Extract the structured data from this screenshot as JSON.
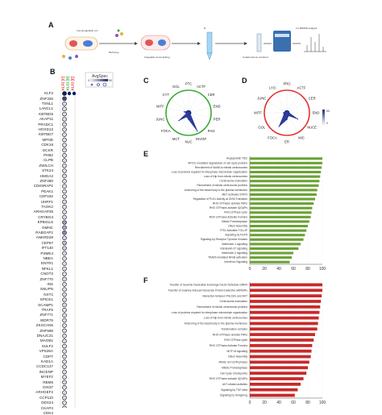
{
  "panels": {
    "a": "A",
    "b": "B",
    "c": "C",
    "d": "D",
    "e": "E",
    "f": "F"
  },
  "workflow": {
    "step1_label": "Immunoglobulin A-1",
    "step2_label": "RUS-free",
    "step3_label": "Cleavable Cross-linking",
    "step4_label": "D",
    "step5_label": "Cobalt column enriched",
    "step6_label": "LC-MS/MS analysis",
    "colors": {
      "bait": "#e25555",
      "prey": "#4a7fd6",
      "tube": "#a5d6f7",
      "ms": "#3a6fb0"
    }
  },
  "dotplot": {
    "column_headers": [
      "KLF2 [C]",
      "KLF2 [D]",
      "KLF2 [E]"
    ],
    "legend_title": "AvgSpec",
    "legend_min": "0",
    "legend_max": "50",
    "genes": [
      "KLF2",
      "ZNF326",
      "TXNL1",
      "LANCL1",
      "KBTBD6",
      "AKAP11",
      "PRADC1",
      "HOXD13",
      "KBTBD7",
      "MPND",
      "CDK16",
      "DCKR",
      "PHB2",
      "CLPB",
      "ZWILCH",
      "STK24",
      "HMGA2",
      "ZNF280",
      "CDK5RAP2",
      "PEAK1",
      "CEP192",
      "UHRF1",
      "TAOK2",
      "ARHGAP35",
      "CRYBG3",
      "EPB41L5",
      "GMNC",
      "RABGAP1",
      "ANKRD28",
      "CEP97",
      "IFT140",
      "PSME4",
      "NBEA",
      "ENTR1",
      "NFKL1",
      "CNOT3",
      "ZNF770",
      "INS",
      "SNUPN",
      "NXT1",
      "SPICE1",
      "SCAMP1",
      "TRAF5",
      "ZNF771",
      "WDR76",
      "ZKSCAN5",
      "ZNF598",
      "DNAJC21",
      "MAOB1",
      "SULF2",
      "VPS26A",
      "CDPT",
      "KAD1A",
      "CCDC137",
      "INCENP",
      "MYEF2",
      "RBM6",
      "DIX37",
      "ARHGEF2",
      "CCP110",
      "DDX24",
      "CKAP4",
      "CDK4"
    ],
    "klf2_values": [
      50,
      40,
      8,
      6,
      3,
      3,
      4,
      3,
      3,
      2,
      2,
      1,
      2,
      2,
      1,
      1,
      2,
      1,
      1,
      1,
      2,
      1,
      1,
      1,
      1,
      22,
      18,
      26,
      9,
      14,
      10,
      3,
      5,
      3,
      2,
      1,
      1,
      1,
      1,
      1,
      1,
      1,
      1,
      1,
      1,
      1,
      1,
      1,
      1,
      1,
      1,
      1,
      1,
      1,
      1,
      1,
      1,
      1,
      1,
      1,
      1,
      1,
      1
    ],
    "low_color": "#ffffff",
    "high_color": "#0d1b6e"
  },
  "radar_c": {
    "labels": [
      "PTC",
      "ACTF",
      "CER",
      "END",
      "PER",
      "RAG",
      "INVOP",
      "NUC",
      "MCT",
      "FOCA",
      "JUNC",
      "MITF",
      "CYT",
      "GOL"
    ],
    "values": [
      0.1,
      0.1,
      0.1,
      0.1,
      0.1,
      0.1,
      0.9,
      0.3,
      0.2,
      0.55,
      0.1,
      0.2,
      0.1,
      0.1
    ],
    "circle_color": "#3aa835",
    "fill_color": "#0a1a8a"
  },
  "radar_d": {
    "labels": [
      "PRO",
      "ACTF",
      "CER",
      "END",
      "NUCE",
      "MIC",
      "ER",
      "FOCA",
      "GOL",
      "MITF",
      "JUNC",
      "LYO"
    ],
    "values": [
      0.1,
      0.1,
      0.1,
      0.1,
      0.55,
      0.15,
      0.3,
      0.7,
      0.15,
      0.15,
      0.1,
      0.1
    ],
    "circle_color": "#e03131",
    "fill_color": "#0a1a8a",
    "legend_min": "0",
    "legend_max": "50"
  },
  "chart_e": {
    "type": "bar",
    "categories": [
      "Angiopoietin TIE2",
      "APC/C-mediated degradation of cell cycle proteins",
      "Recruitment of NuMA to mitotic centrosomes",
      "Loss of proteins required for interphase microtubule organization",
      "Loss of Nlp from mitotic centrosomes",
      "Centrosome maturation",
      "Recruitment of mitotic centrosome proteins",
      "Anchoring of the basal body to the plasma membrane",
      "MET activates STAT3",
      "Regulation of PLK1 Activity at G2/M Transition",
      "RHO GTPases activate PAKs",
      "RHO GTPases activate IQGAPs",
      "RHO GTPase cycle",
      "RHO GTPases Activate Formins",
      "Mitotic Prometaphase",
      "Cilium Assembly",
      "FTEL Activates TOLLIP",
      "Signaling by FGFR",
      "Signaling by Receptor Tyrosine Kinases",
      "Interleukin-1 signaling",
      "Interleukin-37 signaling",
      "Interleukin-2 signaling",
      "TRAF6 mediated NFkB activation",
      "Interferon Signaling"
    ],
    "values": [
      100,
      100,
      99,
      98,
      97,
      96,
      95,
      93,
      92,
      90,
      88,
      86,
      85,
      84,
      82,
      80,
      78,
      76,
      74,
      70,
      67,
      60,
      58,
      55
    ],
    "xlim": [
      0,
      100
    ],
    "xticks": [
      "0",
      "20",
      "40",
      "60",
      "80",
      "100"
    ],
    "bar_color": "#6aa234"
  },
  "chart_f": {
    "type": "bar",
    "categories": [
      "Transfer of Guanine Nucleotide Exchange Factor Defective GNRH",
      "Transfer of Guanine Induced Nonsense Protein Defective SARS/Rv",
      "Interaction between PHLDA1 and AKT",
      "Centrosome maturation",
      "Recruitment of mitotic centrosome proteins",
      "Loss of proteins required for interphase microtubule organization",
      "Loss of Nlp from mitotic centrosomes",
      "Anchoring of the basal body to the plasma membrane",
      "Translocation complex",
      "RHO GTPases activate PAKs",
      "RHO GTPase cycle",
      "RHO GTPases Activate Formins",
      "MITF-M signaling",
      "Cilium Assembly",
      "Mitotic G2-G2/M phases",
      "Mitotic Prometaphase",
      "Cell Cycle Checkpoints",
      "RHO GTPases activate IQGAPs",
      "AKT-related activities",
      "Signaling by TGF-beta",
      "Signaling by Hedgehog"
    ],
    "values": [
      100,
      100,
      99,
      98,
      97,
      96,
      95,
      94,
      93,
      90,
      88,
      86,
      85,
      84,
      82,
      80,
      78,
      74,
      70,
      66,
      62
    ],
    "xlim": [
      0,
      100
    ],
    "xticks": [
      "0",
      "20",
      "40",
      "60",
      "80",
      "100"
    ],
    "bar_color": "#c72a2a"
  }
}
